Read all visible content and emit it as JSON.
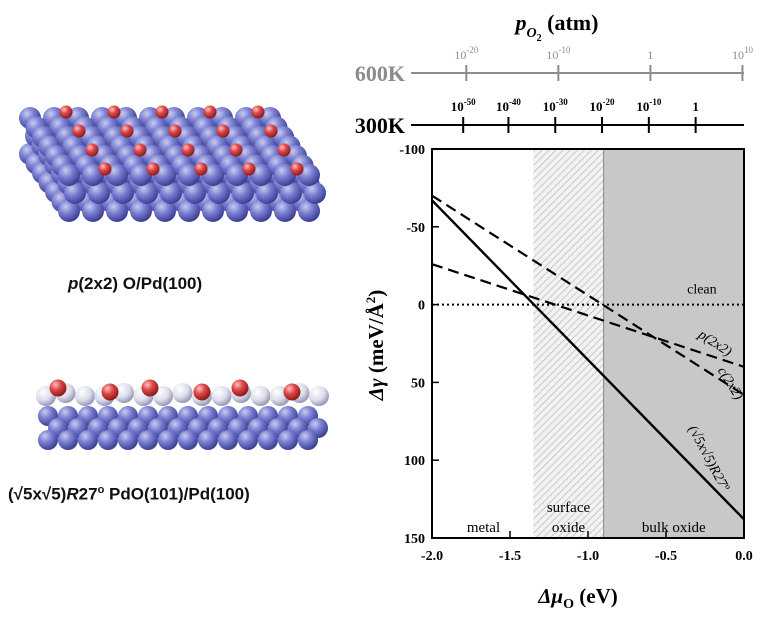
{
  "illustrations": {
    "top_model": {
      "caption_prefix": "p",
      "caption_rest": "(2x2) O/Pd(100)",
      "colors": {
        "pd_atom": "#6f74c8",
        "o_atom": "#d23b3b"
      }
    },
    "bottom_model": {
      "caption_part1": "(√5x√5)",
      "caption_italic": "R",
      "caption_part2": "27",
      "caption_degree": "o",
      "caption_part3": " PdO(101)/Pd(100)",
      "colors": {
        "pd_atom": "#5b5fc0",
        "pd_oxide_atom": "#dcdcec",
        "o_atom": "#c83030"
      }
    }
  },
  "chart_data": {
    "type": "line",
    "title_main": "p",
    "title_sub": "O",
    "title_subsub": "2",
    "title_unit": " (atm)",
    "xlabel_main": "Δμ",
    "xlabel_sub": "O",
    "xlabel_unit": " (eV)",
    "ylabel_main": "Δγ",
    "ylabel_unit": " (meV/Å",
    "ylabel_sup": "2",
    "ylabel_close": ")",
    "xlim": [
      -2.0,
      0.0
    ],
    "ylim": [
      150,
      -100
    ],
    "xticks": [
      -2.0,
      -1.5,
      -1.0,
      -0.5,
      0.0
    ],
    "xtick_labels": [
      "-2.0",
      "-1.5",
      "-1.0",
      "-0.5",
      "0.0"
    ],
    "yticks": [
      -100,
      -50,
      0,
      50,
      100,
      150
    ],
    "ytick_labels": [
      "-100",
      "-50",
      "0",
      "50",
      "100",
      "150"
    ],
    "pressure_axes": [
      {
        "temperature_label": "600K",
        "color": "#8c8c8c",
        "tick_mu": [
          -1.78,
          -1.19,
          -0.6,
          -0.01
        ],
        "tick_exponents": [
          "-20",
          "-10",
          "",
          "10"
        ],
        "tick_bases": [
          "10",
          "10",
          "1",
          "10"
        ]
      },
      {
        "temperature_label": "300K",
        "color": "#000000",
        "tick_mu": [
          -1.8,
          -1.51,
          -1.21,
          -0.91,
          -0.61,
          -0.31
        ],
        "tick_exponents": [
          "-50",
          "-40",
          "-30",
          "-20",
          "-10",
          ""
        ],
        "tick_bases": [
          "10",
          "10",
          "10",
          "10",
          "10",
          "1"
        ]
      }
    ],
    "regions": [
      {
        "name": "metal",
        "label_line1": "metal",
        "label_line2": "",
        "x_range": [
          -2.0,
          -1.35
        ],
        "fill": "none",
        "center_mu": -1.67
      },
      {
        "name": "surface-oxide",
        "label_line1": "surface",
        "label_line2": "oxide",
        "x_range": [
          -1.35,
          -0.9
        ],
        "fill": "hatch",
        "center_mu": -1.125
      },
      {
        "name": "bulk-oxide",
        "label_line1": "bulk oxide",
        "label_line2": "",
        "x_range": [
          -0.9,
          0.0
        ],
        "fill": "#c8c8c8",
        "center_mu": -0.45
      }
    ],
    "series": [
      {
        "name": "clean",
        "style": "dotted",
        "x": [
          -2.0,
          0.0
        ],
        "y": [
          0,
          0
        ],
        "label_mu": -0.27,
        "label_y": -7,
        "label_rot": 0
      },
      {
        "name": "p(2x2)",
        "style": "dashed",
        "x": [
          -2.0,
          0.0
        ],
        "y": [
          -26,
          40
        ],
        "label_mu": -0.2,
        "label_y": 27,
        "label_rot": 33
      },
      {
        "name": "c(2x2)",
        "style": "dashed",
        "x": [
          -2.0,
          0.0
        ],
        "y": [
          -70,
          58
        ],
        "label_mu": -0.11,
        "label_y": 52,
        "label_rot": 58
      },
      {
        "name": "(√5x√5)R27º",
        "style": "solid",
        "x": [
          -2.0,
          0.0
        ],
        "y": [
          -67,
          138
        ],
        "label_mu": -0.25,
        "label_y": 100,
        "label_rot": 62
      }
    ]
  }
}
